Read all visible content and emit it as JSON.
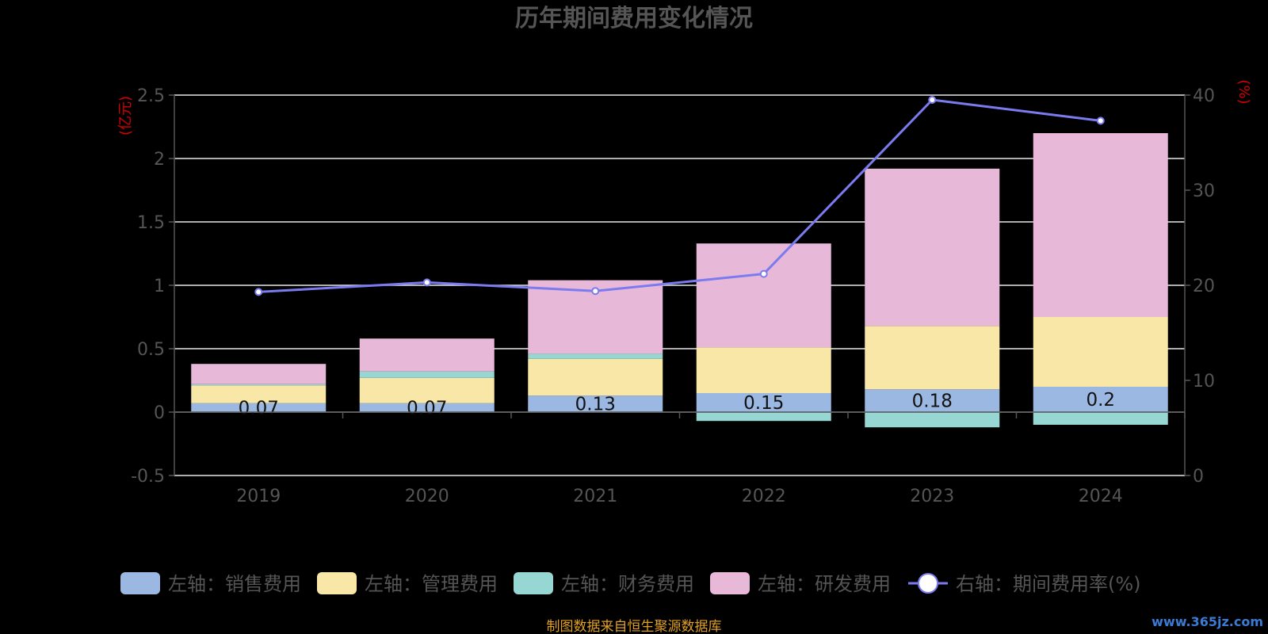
{
  "chart_data": {
    "type": "bar",
    "title": "历年期间费用变化情况",
    "categories": [
      "2019",
      "2020",
      "2021",
      "2022",
      "2023",
      "2024"
    ],
    "left_axis": {
      "unit": "(亿元)",
      "ylim": [
        -0.5,
        2.5
      ],
      "ticks": [
        "-0.5",
        "0",
        "0.5",
        "1",
        "1.5",
        "2",
        "2.5"
      ],
      "tick_values": [
        -0.5,
        0,
        0.5,
        1,
        1.5,
        2,
        2.5
      ]
    },
    "right_axis": {
      "unit": "(%)",
      "ylim": [
        0,
        40
      ],
      "ticks": [
        "0",
        "10",
        "20",
        "30",
        "40"
      ],
      "tick_values": [
        0,
        10,
        20,
        30,
        40
      ]
    },
    "series": [
      {
        "name": "左轴：销售费用",
        "type": "bar",
        "stack": "total",
        "color": "#9bb8e3",
        "values": [
          0.07,
          0.07,
          0.13,
          0.15,
          0.18,
          0.2
        ],
        "labels": [
          "0.07",
          "0.07",
          "0.13",
          "0.15",
          "0.18",
          "0.2"
        ]
      },
      {
        "name": "左轴：管理费用",
        "type": "bar",
        "stack": "total",
        "color": "#f9e7a7",
        "values": [
          0.14,
          0.2,
          0.29,
          0.36,
          0.5,
          0.55
        ]
      },
      {
        "name": "左轴：财务费用",
        "type": "bar",
        "stack": "total",
        "color": "#96d6d3",
        "values": [
          0.01,
          0.05,
          0.04,
          -0.07,
          -0.12,
          -0.1
        ]
      },
      {
        "name": "左轴：研发费用",
        "type": "bar",
        "stack": "total",
        "color": "#e8b8d8",
        "values": [
          0.16,
          0.26,
          0.58,
          0.82,
          1.24,
          1.45
        ]
      },
      {
        "name": "右轴：期间费用率(%)",
        "type": "line",
        "axis": "right",
        "color": "#7b7bf0",
        "values": [
          19.3,
          20.3,
          19.4,
          21.2,
          39.5,
          37.3
        ]
      }
    ],
    "legend_position": "bottom",
    "grid": true
  },
  "source_text": "制图数据来自恒生聚源数据库",
  "watermark": "www.365jz.com"
}
